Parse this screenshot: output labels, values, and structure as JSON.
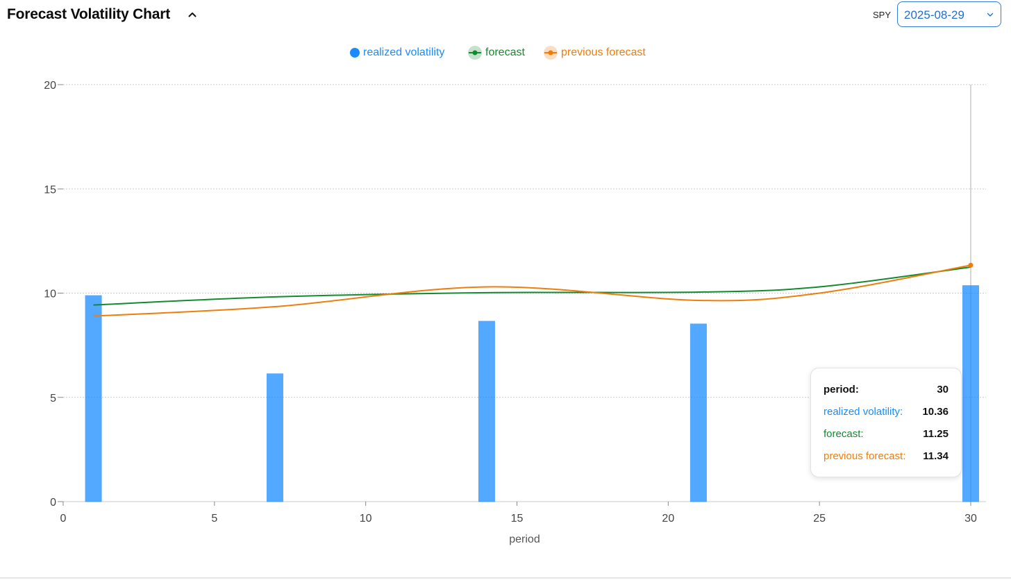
{
  "header": {
    "title": "Forecast Volatility Chart",
    "ticker": "SPY",
    "date": "2025-08-29"
  },
  "icons": {
    "collapse": "chevron-up-icon",
    "dropdown": "chevron-down-icon"
  },
  "legend": [
    {
      "label": "realized volatility",
      "color": "#1a8cff",
      "marker": "dot"
    },
    {
      "label": "forecast",
      "color": "#138a2e",
      "marker": "line-dot"
    },
    {
      "label": "previous forecast",
      "color": "#f07d0a",
      "marker": "line-dot"
    }
  ],
  "tooltip": {
    "period_label": "period:",
    "period_value": "30",
    "realized_label": "realized volatility:",
    "realized_value": "10.36",
    "forecast_label": "forecast:",
    "forecast_value": "11.25",
    "prev_label": "previous forecast:",
    "prev_value": "11.34"
  },
  "chart_data": {
    "type": "bar",
    "xlabel": "period",
    "ylabel": "",
    "xlim": [
      0,
      30
    ],
    "ylim": [
      0,
      20
    ],
    "xticks": [
      0,
      5,
      10,
      15,
      20,
      25,
      30
    ],
    "yticks": [
      0,
      5,
      10,
      15,
      20
    ],
    "grid": true,
    "legend_position": "top-center",
    "series": [
      {
        "name": "realized volatility",
        "kind": "bar",
        "color": "#1a8cff",
        "x": [
          1,
          7,
          14,
          21,
          30
        ],
        "values": [
          9.88,
          6.13,
          8.65,
          8.52,
          10.36
        ]
      },
      {
        "name": "forecast",
        "kind": "line",
        "color": "#138a2e",
        "x": [
          1,
          7,
          14,
          21,
          25,
          30
        ],
        "values": [
          9.43,
          9.82,
          10.02,
          10.05,
          10.3,
          11.25
        ]
      },
      {
        "name": "previous forecast",
        "kind": "line",
        "color": "#f07d0a",
        "x": [
          1,
          7,
          14,
          21,
          25,
          30
        ],
        "values": [
          8.9,
          9.35,
          10.3,
          9.65,
          10.0,
          11.34
        ]
      }
    ],
    "hover": {
      "x": 30
    }
  }
}
